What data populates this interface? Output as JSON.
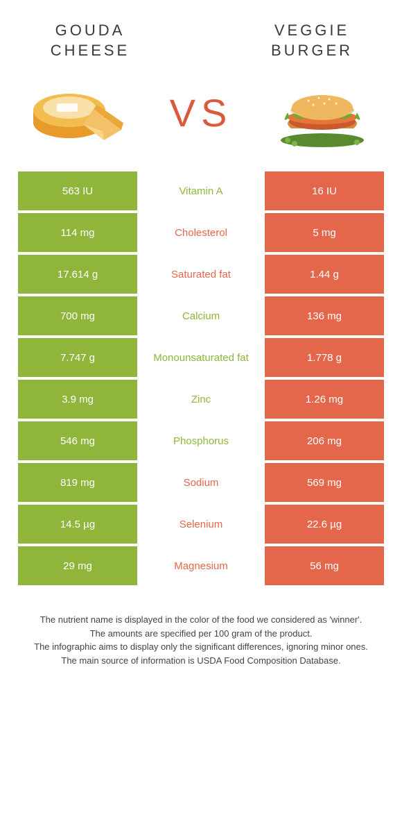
{
  "header": {
    "left_title": "GOUDA CHEESE",
    "right_title": "VEGGIE BURGER",
    "vs": "VS"
  },
  "colors": {
    "green": "#8fb63b",
    "orange": "#e4674b",
    "text": "#3a3a3a"
  },
  "rows": [
    {
      "left": "563 IU",
      "label": "Vitamin A",
      "right": "16 IU",
      "label_color": "green"
    },
    {
      "left": "114 mg",
      "label": "Cholesterol",
      "right": "5 mg",
      "label_color": "orange"
    },
    {
      "left": "17.614 g",
      "label": "Saturated fat",
      "right": "1.44 g",
      "label_color": "orange"
    },
    {
      "left": "700 mg",
      "label": "Calcium",
      "right": "136 mg",
      "label_color": "green"
    },
    {
      "left": "7.747 g",
      "label": "Monounsaturated fat",
      "right": "1.778 g",
      "label_color": "green"
    },
    {
      "left": "3.9 mg",
      "label": "Zinc",
      "right": "1.26 mg",
      "label_color": "green"
    },
    {
      "left": "546 mg",
      "label": "Phosphorus",
      "right": "206 mg",
      "label_color": "green"
    },
    {
      "left": "819 mg",
      "label": "Sodium",
      "right": "569 mg",
      "label_color": "orange"
    },
    {
      "left": "14.5 µg",
      "label": "Selenium",
      "right": "22.6 µg",
      "label_color": "orange"
    },
    {
      "left": "29 mg",
      "label": "Magnesium",
      "right": "56 mg",
      "label_color": "orange"
    }
  ],
  "footer": {
    "line1": "The nutrient name is displayed in the color of the food we considered as 'winner'.",
    "line2": "The amounts are specified per 100 gram of the product.",
    "line3": "The infographic aims to display only the significant differences, ignoring minor ones.",
    "line4": "The main source of information is USDA Food Composition Database."
  }
}
